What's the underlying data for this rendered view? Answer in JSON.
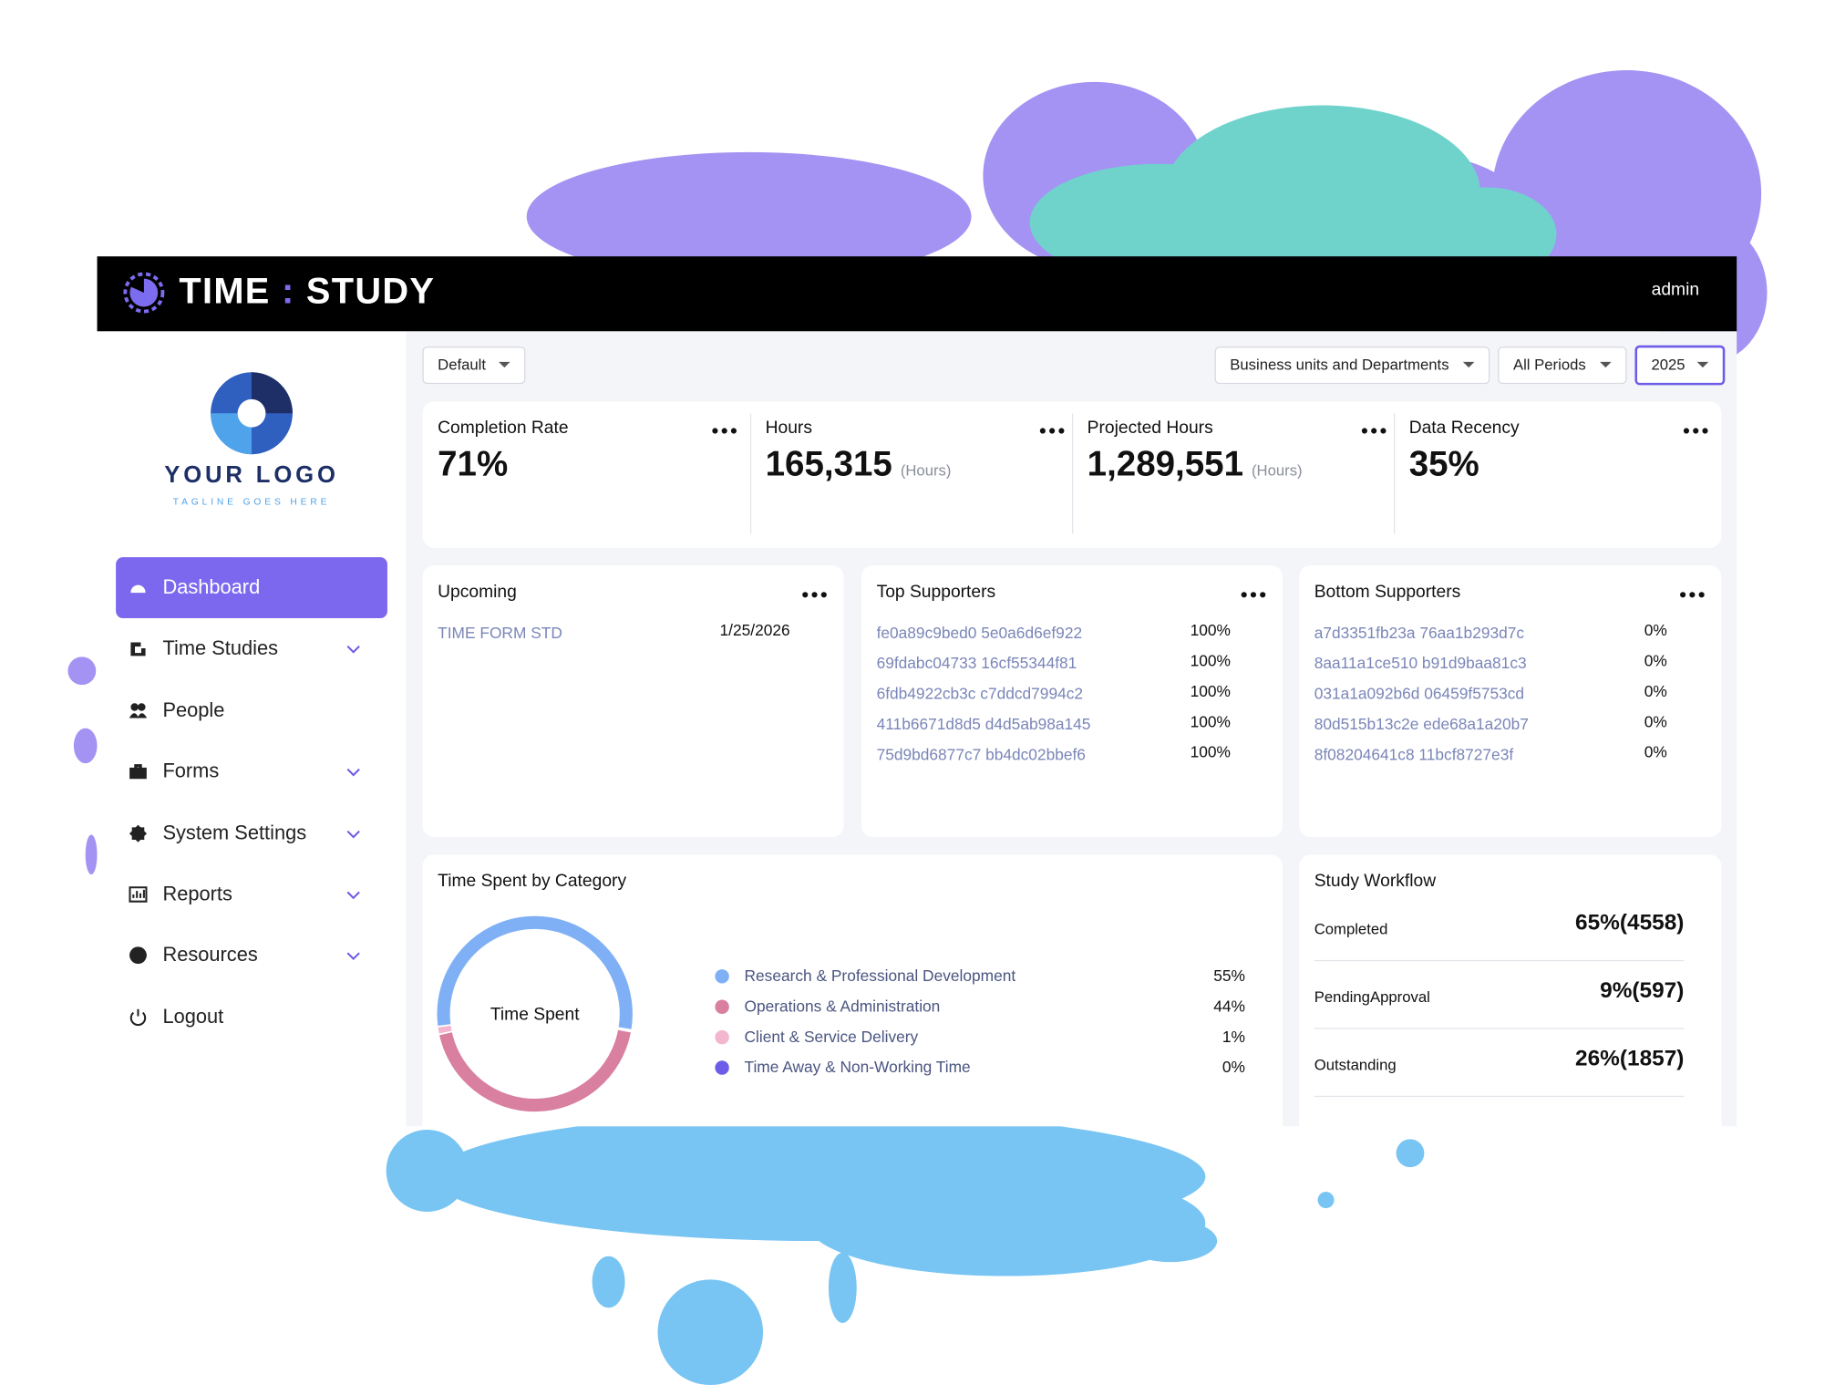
{
  "header": {
    "brand_left": "TIME",
    "brand_sep": ":",
    "brand_right": "STUDY",
    "user": "admin"
  },
  "sidebar": {
    "logo_title": "YOUR LOGO",
    "logo_tagline": "TAGLINE GOES HERE",
    "nav": [
      {
        "label": "Dashboard",
        "active": true,
        "submenu": false
      },
      {
        "label": "Time Studies",
        "active": false,
        "submenu": true
      },
      {
        "label": "People",
        "active": false,
        "submenu": false
      },
      {
        "label": "Forms",
        "active": false,
        "submenu": true
      },
      {
        "label": "System Settings",
        "active": false,
        "submenu": true
      },
      {
        "label": "Reports",
        "active": false,
        "submenu": true
      },
      {
        "label": "Resources",
        "active": false,
        "submenu": true
      },
      {
        "label": "Logout",
        "active": false,
        "submenu": false
      }
    ]
  },
  "filters": [
    "Default",
    "Business units and Departments",
    "All Periods",
    "2025"
  ],
  "kpis": [
    {
      "title": "Completion Rate",
      "value": "71%"
    },
    {
      "title": "Hours",
      "value": "165,315",
      "unit": "(Hours)"
    },
    {
      "title": "Projected Hours",
      "value": "1,289,551",
      "unit": "(Hours)"
    },
    {
      "title": "Data Recency",
      "value": "35%"
    }
  ],
  "upcoming": {
    "title": "Upcoming",
    "rows": [
      [
        "TIME FORM STD",
        "1/25/2026"
      ]
    ]
  },
  "top_supporters": {
    "title": "Top Supporters",
    "rows": [
      [
        "fe0a89c9bed0 5e0a6d6ef922",
        "100%"
      ],
      [
        "69fdabc04733 16cf55344f81",
        "100%"
      ],
      [
        "6fdb4922cb3c c7ddcd7994c2",
        "100%"
      ],
      [
        "411b6671d8d5 d4d5ab98a145",
        "100%"
      ],
      [
        "75d9bd6877c7 bb4dc02bbef6",
        "100%"
      ]
    ]
  },
  "bottom_supporters": {
    "title": "Bottom Supporters",
    "rows": [
      [
        "a7d3351fb23a 76aa1b293d7c",
        "0%"
      ],
      [
        "8aa11a1ce510 b91d9baa81c3",
        "0%"
      ],
      [
        "031a1a092b6d 06459f5753cd",
        "0%"
      ],
      [
        "80d515b13c2e ede68a1a20b7",
        "0%"
      ],
      [
        "8f08204641c8 11bcf8727e3f",
        "0%"
      ]
    ]
  },
  "time_spent": {
    "title": "Time Spent by Category",
    "center_label": "Time Spent",
    "categories": [
      "Research & Professional Development",
      "Operations & Administration",
      "Client & Service Delivery",
      "Time Away & Non-Working Time"
    ],
    "values": [
      55,
      44,
      1,
      0
    ],
    "value_labels": [
      "55%",
      "44%",
      "1%",
      "0%"
    ],
    "colors": [
      "#7fb0f5",
      "#d97fa0",
      "#f2b6cf",
      "#6c5ce7"
    ]
  },
  "study_workflow": {
    "title": "Study Workflow",
    "rows": [
      {
        "label": "Completed",
        "value": "65%(4558)"
      },
      {
        "label": "PendingApproval",
        "value": "9%(597)"
      },
      {
        "label": "Outstanding",
        "value": "26%(1857)"
      }
    ]
  }
}
